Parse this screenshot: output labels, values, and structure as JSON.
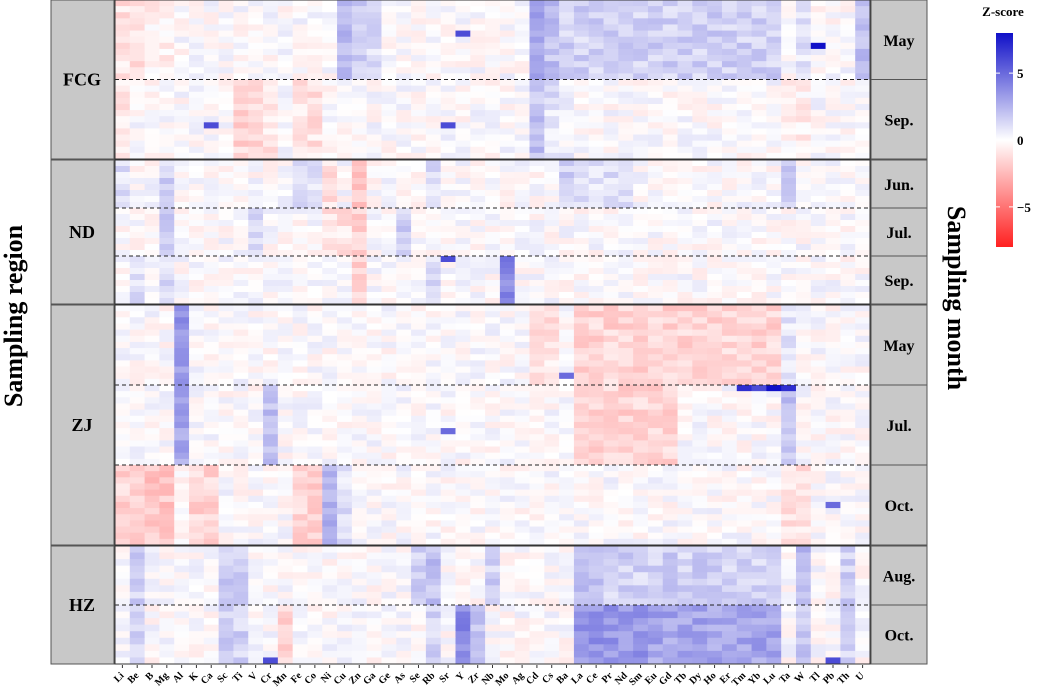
{
  "chart_data": {
    "type": "heatmap",
    "ylabel_left": "Sampling region",
    "ylabel_right": "Sampling month",
    "legend": {
      "title": "Z-score",
      "ticks": [
        "5",
        "0",
        "−5"
      ],
      "tick_values": [
        5,
        0,
        -5
      ],
      "range": [
        -8,
        8
      ],
      "colors": {
        "low": "#ff2020",
        "mid": "#ffffff",
        "high": "#1010c8"
      }
    },
    "elements": [
      "Li",
      "Be",
      "B",
      "Mg",
      "Al",
      "K",
      "Ca",
      "Sc",
      "Ti",
      "V",
      "Cr",
      "Mn",
      "Fe",
      "Co",
      "Ni",
      "Cu",
      "Zn",
      "Ga",
      "Ge",
      "As",
      "Se",
      "Rb",
      "Sr",
      "Y",
      "Zr",
      "Nb",
      "Mo",
      "Ag",
      "Cd",
      "Cs",
      "Ba",
      "La",
      "Ce",
      "Pr",
      "Nd",
      "Sm",
      "Eu",
      "Gd",
      "Tb",
      "Dy",
      "Ho",
      "Er",
      "Tm",
      "Yb",
      "Lu",
      "Ta",
      "W",
      "Tl",
      "Pb",
      "Th",
      "U"
    ],
    "regions": [
      {
        "name": "FCG",
        "months": [
          {
            "label": "May",
            "rows": 13
          },
          {
            "label": "Sep.",
            "rows": 13
          }
        ]
      },
      {
        "name": "ND",
        "months": [
          {
            "label": "Jun.",
            "rows": 8
          },
          {
            "label": "Jul.",
            "rows": 8
          },
          {
            "label": "Sep.",
            "rows": 8
          }
        ]
      },
      {
        "name": "ZJ",
        "months": [
          {
            "label": "May",
            "rows": 13
          },
          {
            "label": "Jul.",
            "rows": 13
          },
          {
            "label": "Oct.",
            "rows": 13
          }
        ]
      },
      {
        "name": "HZ",
        "months": [
          {
            "label": "Aug.",
            "rows": 9
          },
          {
            "label": "Oct.",
            "rows": 9
          }
        ]
      }
    ],
    "block_means": {
      "FCG|May": {
        "Cu": 2.5,
        "Zn": 1.5,
        "Ga": 1.0,
        "Cd": 3.0,
        "Cs": 2.0,
        "Ba": 1.5,
        "La": 1.5,
        "Ce": 1.5,
        "Pr": 1.5,
        "Nd": 1.5,
        "Sm": 1.5,
        "Eu": 1.5,
        "Gd": 1.5,
        "Tb": 1.5,
        "Dy": 1.5,
        "Ho": 1.5,
        "Er": 1.5,
        "Tm": 1.5,
        "Yb": 1.5,
        "Lu": 1.5,
        "W": 1.0,
        "U": 2.0,
        "Li": -1.0,
        "Be": -1.0,
        "B": -0.5,
        "Mg": -0.5
      },
      "FCG|Sep.": {
        "Ti": -1.5,
        "V": -1.5,
        "Cr": -1.0,
        "Fe": -1.0,
        "Co": -1.0,
        "Li": -1.0,
        "Cd": 2.0,
        "Cs": 1.0,
        "Ba": 0.5,
        "Ta": -0.5,
        "W": -0.5
      },
      "ND|Jun.": {
        "Mg": 1.5,
        "Fe": 1.5,
        "Co": 1.0,
        "Ba": 1.5,
        "Rb": 1.0,
        "Li": 1.0,
        "La": 1.0,
        "Ce": 1.0,
        "Pr": 1.0,
        "Nd": 1.0,
        "Ta": 1.5,
        "Zn": -2.0,
        "Ni": -1.0
      },
      "ND|Jul.": {
        "Mg": 1.5,
        "V": 1.5,
        "As": 1.5,
        "Zn": -1.5,
        "Ni": -1.0,
        "Cu": -1.0
      },
      "ND|Sep.": {
        "Mo": 4.0,
        "Mg": 1.0,
        "Rb": 1.0,
        "Be": 1.0,
        "Zn": -1.5
      },
      "ZJ|May": {
        "Al": 3.5,
        "Ta": 1.0,
        "La": -1.5,
        "Ce": -1.5,
        "Pr": -1.5,
        "Nd": -1.5,
        "Sm": -1.5,
        "Eu": -1.5,
        "Gd": -1.5,
        "Tb": -1.5,
        "Dy": -1.5,
        "Ho": -1.5,
        "Er": -1.5,
        "Tm": -1.5,
        "Yb": -1.5,
        "Lu": -1.5,
        "Cd": -1.0,
        "Cs": -1.0
      },
      "ZJ|Jul.": {
        "Al": 3.0,
        "Cr": 2.0,
        "Ta": 2.0,
        "La": -1.5,
        "Ce": -1.5,
        "Pr": -1.5,
        "Nd": -1.5,
        "Sm": -1.5,
        "Eu": -1.5,
        "Gd": -1.5
      },
      "ZJ|Oct.": {
        "Ni": 2.5,
        "Cu": 1.0,
        "Al": -0.1,
        "B": -2.0,
        "Mg": -2.0,
        "Be": -1.5,
        "Li": -1.5,
        "K": -1.5,
        "Ca": -1.5,
        "Fe": -1.5,
        "Co": -1.5,
        "Ta": -1.0,
        "W": -1.0
      },
      "HZ|Aug.": {
        "Be": 1.5,
        "Sc": 1.5,
        "Ti": 1.5,
        "Rb": 2.0,
        "Se": 1.5,
        "Nb": 1.5,
        "La": 2.0,
        "Ce": 2.0,
        "Pr": 1.5,
        "Nd": 1.5,
        "Sm": 1.5,
        "Eu": 1.5,
        "Gd": 1.5,
        "Tb": 1.5,
        "Dy": 1.5,
        "Ho": 1.5,
        "Er": 1.5,
        "Tm": 1.5,
        "Yb": 1.5,
        "Lu": 1.5,
        "W": 2.5,
        "Th": 1.5
      },
      "HZ|Oct.": {
        "La": 3.5,
        "Ce": 3.5,
        "Pr": 3.5,
        "Nd": 3.5,
        "Sm": 3.5,
        "Eu": 3.0,
        "Gd": 3.0,
        "Tb": 3.0,
        "Dy": 3.0,
        "Ho": 3.0,
        "Er": 3.0,
        "Tm": 3.0,
        "Yb": 3.0,
        "Lu": 3.0,
        "Y": 4.0,
        "Zr": 2.0,
        "Be": 1.5,
        "Sc": 1.5,
        "Ti": 1.5,
        "Rb": 1.5,
        "W": 2.0,
        "Th": 1.5,
        "Mn": -1.5
      }
    },
    "highlights": [
      {
        "block": "FCG|May",
        "element": "Tl",
        "row": 7,
        "value": 8
      },
      {
        "block": "FCG|May",
        "element": "Y",
        "row": 5,
        "value": 6
      },
      {
        "block": "FCG|Sep.",
        "element": "Ca",
        "row": 7,
        "value": 6
      },
      {
        "block": "FCG|Sep.",
        "element": "Sr",
        "row": 7,
        "value": 6
      },
      {
        "block": "ND|Sep.",
        "element": "Sr",
        "row": 0,
        "value": 6
      },
      {
        "block": "ZJ|Jul.",
        "element": "Tm",
        "row": 0,
        "value": 7
      },
      {
        "block": "ZJ|Jul.",
        "element": "Yb",
        "row": 0,
        "value": 6
      },
      {
        "block": "ZJ|Jul.",
        "element": "Lu",
        "row": 0,
        "value": 8
      },
      {
        "block": "ZJ|Jul.",
        "element": "Ta",
        "row": 0,
        "value": 7
      },
      {
        "block": "ZJ|Jul.",
        "element": "Sr",
        "row": 7,
        "value": 5
      },
      {
        "block": "ZJ|May",
        "element": "Ba",
        "row": 11,
        "value": 5
      },
      {
        "block": "ZJ|Oct.",
        "element": "Pb",
        "row": 6,
        "value": 5
      },
      {
        "block": "HZ|Oct.",
        "element": "Cr",
        "row": 8,
        "value": 6
      },
      {
        "block": "HZ|Oct.",
        "element": "Pb",
        "row": 8,
        "value": 6
      }
    ]
  }
}
